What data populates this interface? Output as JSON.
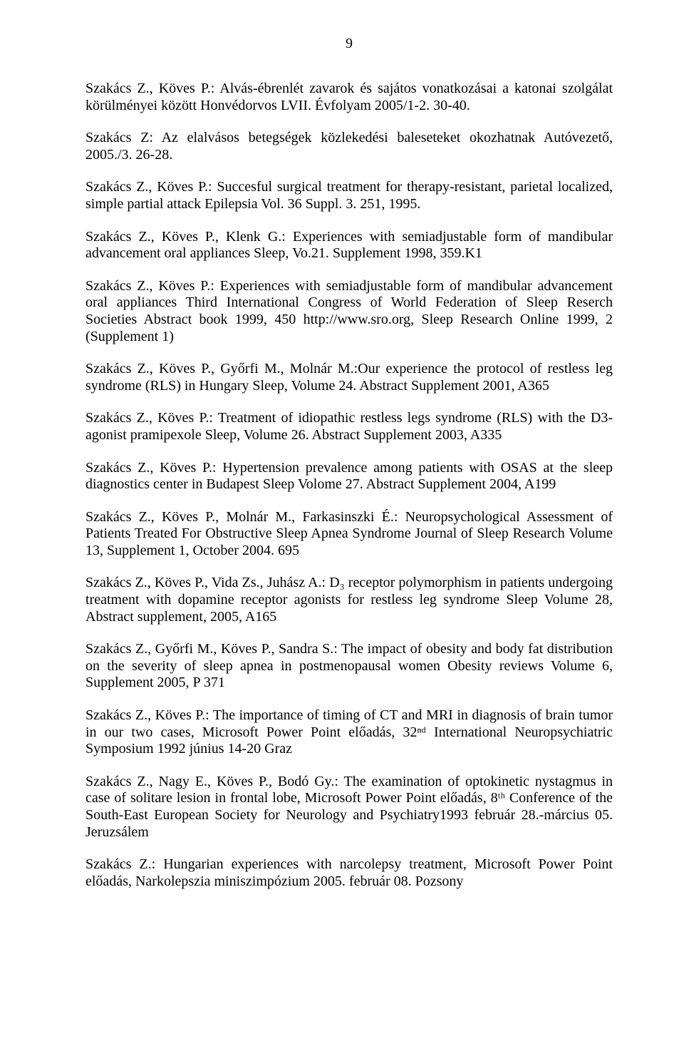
{
  "page_number": "9",
  "text_color": "#000000",
  "background_color": "#ffffff",
  "font_family": "Times New Roman",
  "body_fontsize_pt": 15,
  "entries": [
    "Szakács Z., Köves P.: Alvás-ébrenlét zavarok és sajátos vonatkozásai a katonai szolgálat körülményei között Honvédorvos LVII. Évfolyam 2005/1-2. 30-40.",
    "Szakács Z: Az elalvásos betegségek közlekedési baleseteket okozhatnak Autóvezető, 2005./3. 26-28.",
    "Szakács Z., Köves P.: Succesful surgical treatment for therapy-resistant, parietal localized, simple partial attack Epilepsia Vol. 36 Suppl. 3. 251, 1995.",
    "Szakács Z., Köves P., Klenk G.: Experiences with semiadjustable form of mandibular advancement oral appliances Sleep, Vo.21. Supplement 1998, 359.K1",
    "Szakács Z., Köves P.: Experiences with semiadjustable form of mandibular advancement oral appliances Third International Congress of World Federation of Sleep Reserch Societies Abstract book 1999, 450        http://www.sro.org, Sleep Research Online 1999, 2 (Supplement 1)",
    "Szakács Z., Köves P., Győrfi M., Molnár M.:Our experience the protocol of restless leg syndrome (RLS) in Hungary Sleep, Volume 24. Abstract Supplement 2001, A365",
    "Szakács Z., Köves P.: Treatment of idiopathic restless legs syndrome (RLS) with the D3-agonist pramipexole  Sleep, Volume 26. Abstract Supplement 2003, A335",
    "Szakács Z., Köves P.: Hypertension prevalence among patients with OSAS at the          sleep diagnostics center in Budapest Sleep Volome 27. Abstract Supplement 2004, A199",
    "Szakács Z., Köves P., Molnár M., Farkasinszki É.: Neuropsychological Assessment of Patients Treated For Obstructive Sleep Apnea Syndrome Journal of Sleep Research Volume 13, Supplement 1, October 2004. 695",
    "Szakács Z., Köves P., Vida Zs., Juhász A.: D₃ receptor polymorphism in patients undergoing treatment with dopamine receptor agonists for restless leg syndrome Sleep Volume 28, Abstract supplement, 2005, A165",
    "Szakács Z., Győrfi M., Köves P., Sandra S.: The impact of obesity and body fat  distribution on the severity of sleep apnea in postmenopausal women Obesity reviews Volume 6, Supplement 2005, P 371",
    "Szakács Z., Köves P.: The importance of timing of CT and MRI in diagnosis of brain tumor in our two cases, Microsoft Power Point előadás, 32ⁿᵈ International Neuropsychiatric Symposium 1992 június 14-20 Graz",
    "Szakács Z., Nagy E., Köves P., Bodó Gy.: The examination of optokinetic nystagmus in case of solitare lesion in frontal lobe, Microsoft Power Point előadás, 8ᵗʰ Conference of the South-East European Society for Neurology and Psychiatry1993 február 28.-március 05. Jeruzsálem",
    "Szakács Z.: Hungarian experiences with narcolepsy treatment, Microsoft Power Point előadás, Narkolepszia miniszimpózium 2005. február 08. Pozsony"
  ]
}
